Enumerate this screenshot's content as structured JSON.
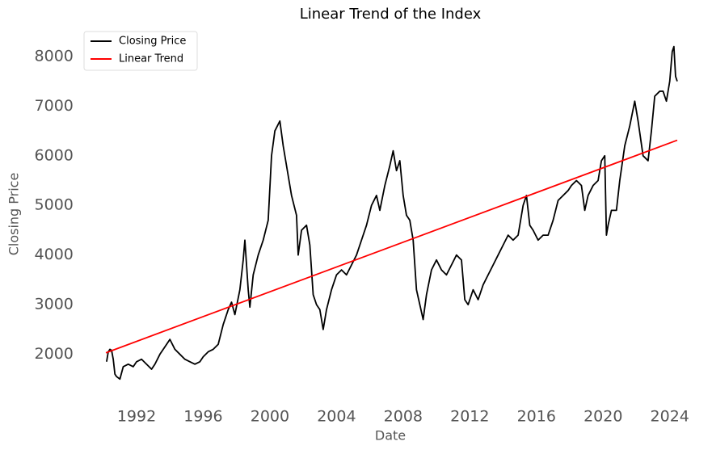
{
  "chart_data": {
    "type": "line",
    "title": "Linear Trend of the Index",
    "x_label": "Date",
    "y_label": "Closing Price",
    "xlim": [
      1988.6,
      2026.1
    ],
    "xticks": [
      1992,
      1996,
      2000,
      2004,
      2008,
      2012,
      2016,
      2020,
      2024
    ],
    "ylim": [
      1000,
      8650
    ],
    "yticks": [
      2000,
      3000,
      4000,
      5000,
      6000,
      7000,
      8000
    ],
    "grid": false,
    "legend": "upper left",
    "series": [
      {
        "name": "Closing Price",
        "color": "#000000",
        "x": [
          1990.2,
          1990.3,
          1990.4,
          1990.5,
          1990.6,
          1990.7,
          1990.8,
          1991.0,
          1991.2,
          1991.5,
          1991.8,
          1992.0,
          1992.3,
          1992.6,
          1992.9,
          1993.1,
          1993.4,
          1993.7,
          1994.0,
          1994.3,
          1994.6,
          1994.9,
          1995.2,
          1995.5,
          1995.8,
          1996.0,
          1996.3,
          1996.6,
          1996.9,
          1997.2,
          1997.5,
          1997.7,
          1997.9,
          1998.2,
          1998.4,
          1998.5,
          1998.7,
          1998.8,
          1999.0,
          1999.3,
          1999.6,
          1999.9,
          2000.1,
          2000.3,
          2000.6,
          2000.8,
          2001.0,
          2001.3,
          2001.6,
          2001.7,
          2001.9,
          2002.2,
          2002.4,
          2002.6,
          2002.8,
          2003.0,
          2003.2,
          2003.4,
          2003.7,
          2004.0,
          2004.3,
          2004.6,
          2004.9,
          2005.2,
          2005.5,
          2005.8,
          2006.1,
          2006.4,
          2006.6,
          2006.9,
          2007.2,
          2007.4,
          2007.6,
          2007.8,
          2008.0,
          2008.2,
          2008.4,
          2008.6,
          2008.8,
          2009.0,
          2009.2,
          2009.4,
          2009.7,
          2010.0,
          2010.3,
          2010.6,
          2010.9,
          2011.2,
          2011.5,
          2011.7,
          2011.9,
          2012.2,
          2012.5,
          2012.8,
          2013.1,
          2013.4,
          2013.7,
          2014.0,
          2014.3,
          2014.6,
          2014.9,
          2015.2,
          2015.4,
          2015.6,
          2015.8,
          2016.1,
          2016.4,
          2016.7,
          2017.0,
          2017.3,
          2017.6,
          2017.9,
          2018.1,
          2018.4,
          2018.7,
          2018.9,
          2019.1,
          2019.4,
          2019.7,
          2019.9,
          2020.1,
          2020.2,
          2020.3,
          2020.5,
          2020.8,
          2021.0,
          2021.3,
          2021.6,
          2021.9,
          2022.1,
          2022.4,
          2022.7,
          2022.9,
          2023.1,
          2023.4,
          2023.6,
          2023.8,
          2024.0,
          2024.15,
          2024.25,
          2024.35,
          2024.45
        ],
        "values": [
          1850,
          2050,
          2100,
          2080,
          1900,
          1600,
          1550,
          1500,
          1750,
          1800,
          1750,
          1850,
          1900,
          1800,
          1700,
          1800,
          2000,
          2150,
          2300,
          2100,
          2000,
          1900,
          1850,
          1800,
          1850,
          1950,
          2050,
          2100,
          2200,
          2600,
          2900,
          3050,
          2800,
          3300,
          3900,
          4300,
          3300,
          2950,
          3600,
          4000,
          4300,
          4700,
          6000,
          6500,
          6700,
          6200,
          5800,
          5200,
          4800,
          4000,
          4500,
          4600,
          4200,
          3200,
          3000,
          2900,
          2500,
          2900,
          3300,
          3600,
          3700,
          3600,
          3800,
          4000,
          4300,
          4600,
          5000,
          5200,
          4900,
          5400,
          5800,
          6100,
          5700,
          5900,
          5200,
          4800,
          4700,
          4300,
          3300,
          3000,
          2700,
          3200,
          3700,
          3900,
          3700,
          3600,
          3800,
          4000,
          3900,
          3100,
          3000,
          3300,
          3100,
          3400,
          3600,
          3800,
          4000,
          4200,
          4400,
          4300,
          4400,
          5000,
          5200,
          4600,
          4500,
          4300,
          4400,
          4400,
          4700,
          5100,
          5200,
          5300,
          5400,
          5500,
          5400,
          4900,
          5200,
          5400,
          5500,
          5900,
          6000,
          4400,
          4600,
          4900,
          4900,
          5500,
          6200,
          6600,
          7100,
          6700,
          6000,
          5900,
          6500,
          7200,
          7300,
          7300,
          7100,
          7500,
          8100,
          8200,
          7600,
          7500
        ]
      },
      {
        "name": "Linear Trend",
        "color": "#ff0000",
        "x": [
          1990.16,
          2024.45
        ],
        "values": [
          2030,
          6313
        ]
      }
    ]
  }
}
